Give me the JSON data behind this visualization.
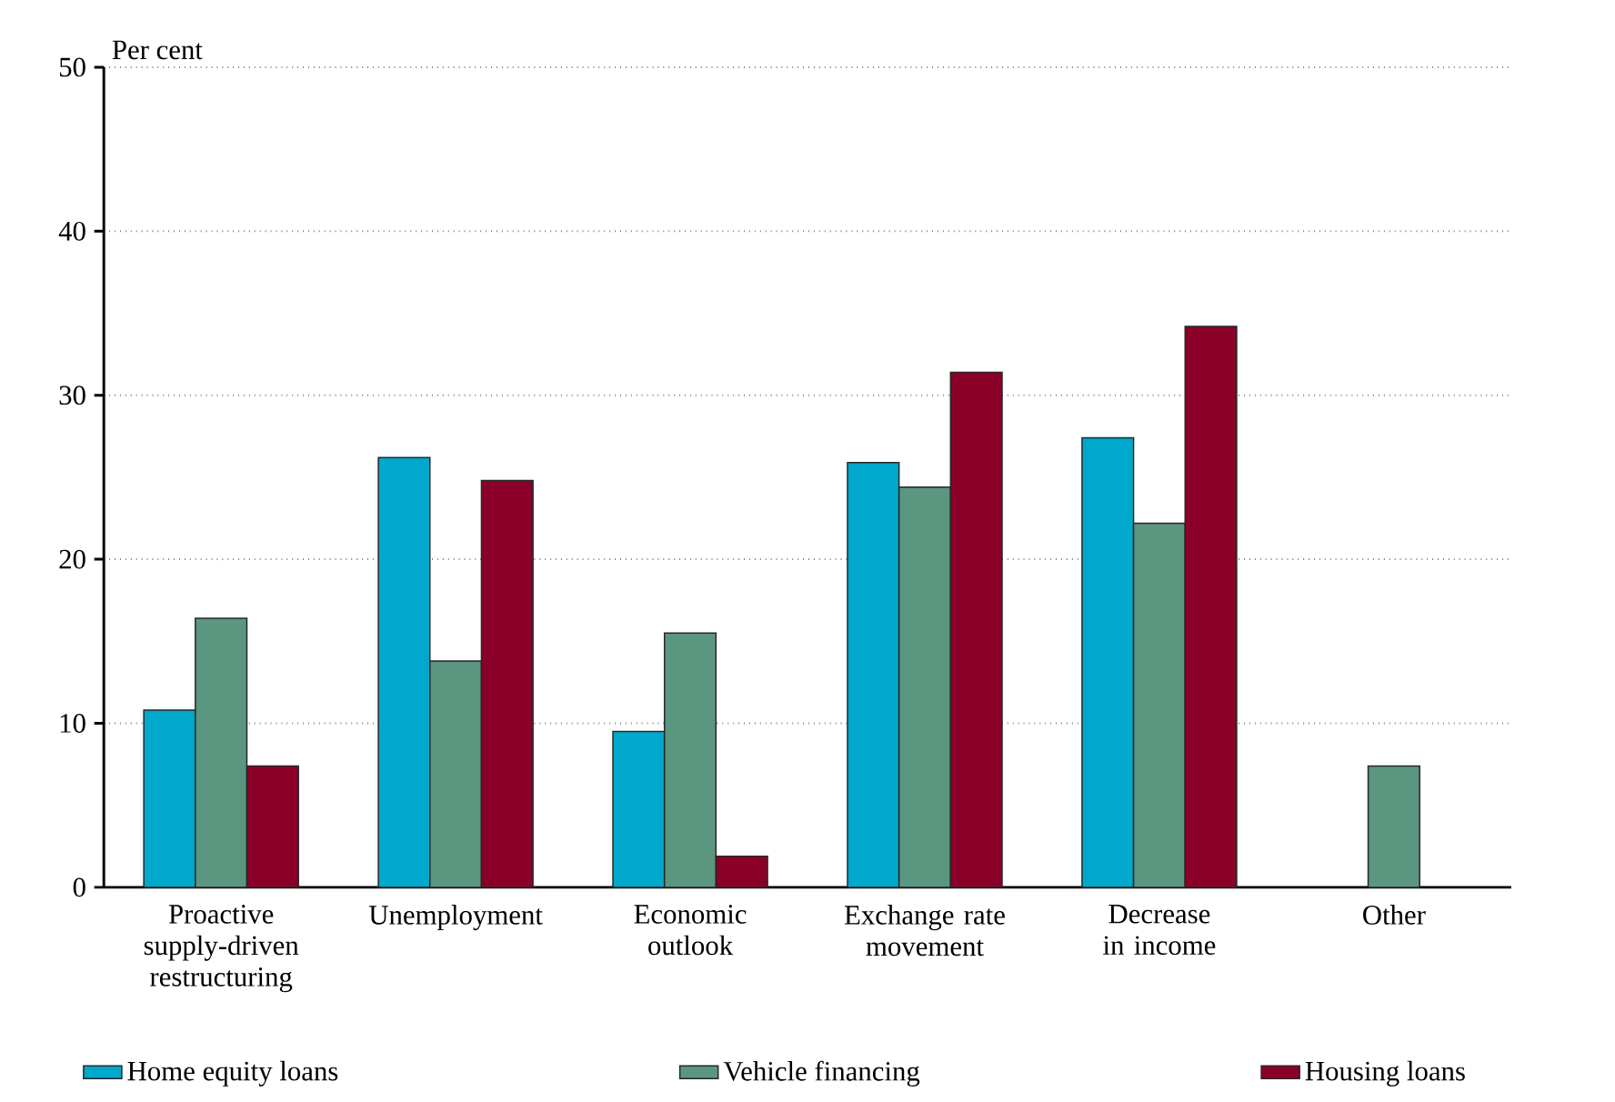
{
  "chart_data": {
    "type": "bar",
    "ylabel": "Per cent",
    "categories": [
      "Proactive supply-driven restructuring",
      "Unemployment",
      "Economic outlook",
      "Exchange rate movement",
      "Decrease in income",
      "Other"
    ],
    "series": [
      {
        "name": "Home equity loans",
        "color": "#00a8cc",
        "values": [
          10.8,
          26.2,
          9.5,
          25.9,
          27.4,
          null
        ]
      },
      {
        "name": "Vehicle financing",
        "color": "#5a9680",
        "values": [
          16.4,
          13.8,
          15.5,
          24.4,
          22.2,
          7.4
        ]
      },
      {
        "name": "Housing loans",
        "color": "#8b0028",
        "values": [
          7.4,
          24.8,
          1.9,
          31.4,
          34.2,
          null
        ]
      }
    ],
    "ylim": [
      0,
      50
    ],
    "yticks": [
      0,
      10,
      20,
      30,
      40,
      50
    ],
    "grid": "y",
    "legend": "bottom"
  }
}
